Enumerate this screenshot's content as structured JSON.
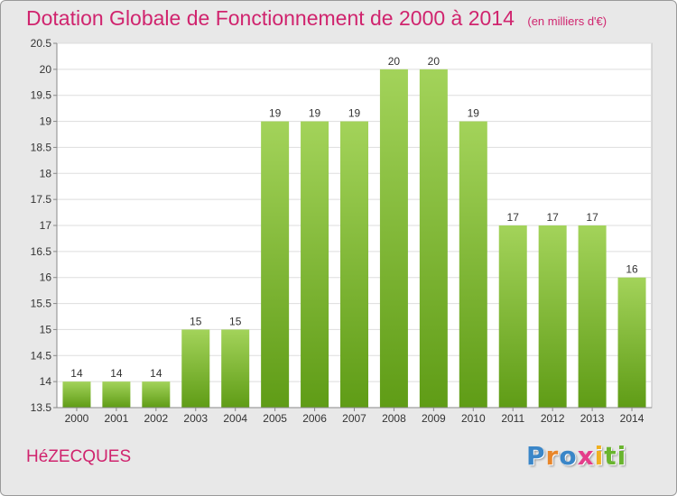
{
  "header": {
    "title": "Dotation Globale de Fonctionnement de 2000 à 2014",
    "subtitle": "(en milliers d'€)"
  },
  "footer": {
    "commune": "HéZECQUES",
    "logo_parts": [
      "P",
      "r",
      "o",
      "x",
      "i",
      "ti"
    ]
  },
  "colors": {
    "title": "#d0246e",
    "bar_light": "#a3d35a",
    "bar_dark": "#5f9c16",
    "plot_bg": "#ffffff",
    "grid": "#dddddd"
  },
  "chart_data": {
    "type": "bar",
    "title": "Dotation Globale de Fonctionnement de 2000 à 2014",
    "subtitle": "(en milliers d'€)",
    "xlabel": "",
    "ylabel": "",
    "categories": [
      "2000",
      "2001",
      "2002",
      "2003",
      "2004",
      "2005",
      "2006",
      "2007",
      "2008",
      "2009",
      "2010",
      "2011",
      "2012",
      "2013",
      "2014"
    ],
    "values": [
      14,
      14,
      14,
      15,
      15,
      19,
      19,
      19,
      20,
      20,
      19,
      17,
      17,
      17,
      16
    ],
    "ylim": [
      13.5,
      20.5
    ],
    "yticks": [
      "13.5",
      "14",
      "14.5",
      "15",
      "15.5",
      "16",
      "16.5",
      "17",
      "17.5",
      "18",
      "18.5",
      "19",
      "19.5",
      "20",
      "20.5"
    ],
    "grid": true,
    "legend": "none"
  }
}
